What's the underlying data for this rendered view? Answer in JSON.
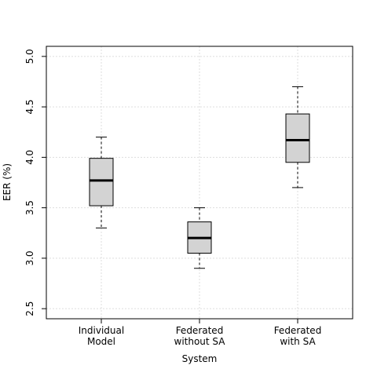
{
  "chart_data": {
    "type": "boxplot",
    "title": "",
    "xlabel": "System",
    "ylabel": "EER (%)",
    "ylim": [
      2.4,
      5.1
    ],
    "yticks": [
      "2.5",
      "3.0",
      "3.5",
      "4.0",
      "4.5",
      "5.0"
    ],
    "grid": true,
    "categories": [
      [
        "Individual",
        "Model"
      ],
      [
        "Federated",
        "without SA"
      ],
      [
        "Federated",
        "with SA"
      ]
    ],
    "boxes": [
      {
        "whisker_low": 3.3,
        "q1": 3.52,
        "median": 3.77,
        "q3": 3.99,
        "whisker_high": 4.2
      },
      {
        "whisker_low": 2.9,
        "q1": 3.05,
        "median": 3.2,
        "q3": 3.36,
        "whisker_high": 3.5
      },
      {
        "whisker_low": 3.7,
        "q1": 3.95,
        "median": 4.17,
        "q3": 4.43,
        "whisker_high": 4.7
      }
    ],
    "colors": {
      "box_fill": "#d3d3d3",
      "grid": "#dddddd"
    }
  }
}
